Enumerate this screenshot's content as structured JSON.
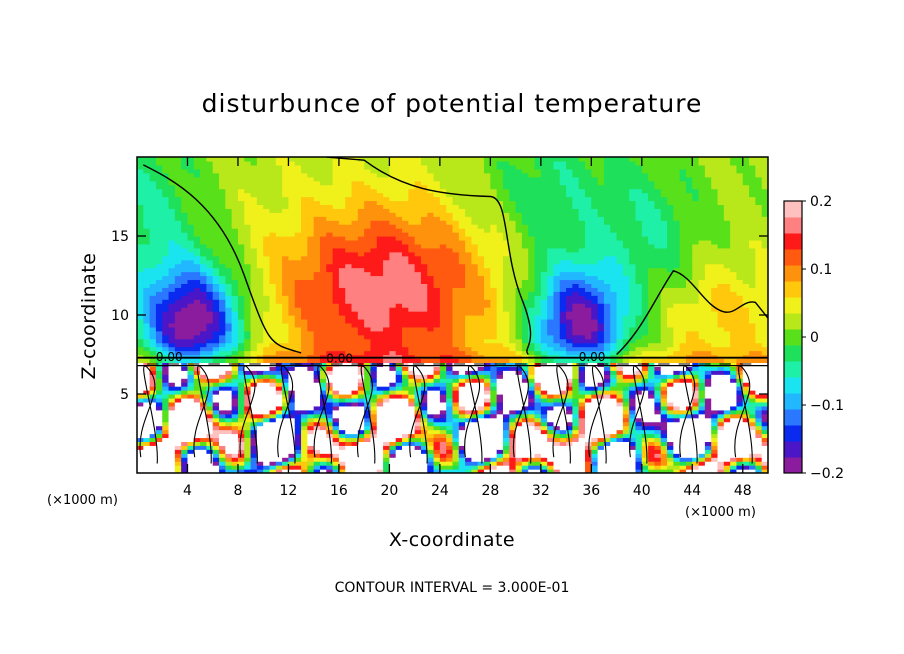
{
  "chart_data": {
    "type": "heatmap",
    "title": "disturbunce of potential temperature",
    "xlabel": "X-coordinate",
    "ylabel": "Z-coordinate",
    "x_unit_left": "(×1000 m)",
    "x_unit_right": "(×1000 m)",
    "footer": "CONTOUR INTERVAL = 3.000E-01",
    "xlim": [
      0,
      50
    ],
    "ylim": [
      0,
      20
    ],
    "x_ticks": [
      4,
      8,
      12,
      16,
      20,
      24,
      28,
      32,
      36,
      40,
      44,
      48
    ],
    "y_ticks": [
      5,
      10,
      15
    ],
    "colorbar": {
      "range": [
        -0.2,
        0.2
      ],
      "tick_values": [
        0.2,
        0.1,
        0,
        -0.1,
        -0.2
      ],
      "tick_labels": [
        "0.2",
        "0.1",
        "0",
        "−0.1",
        "−0.2"
      ],
      "colors": [
        "#8b1c9e",
        "#4a16c8",
        "#0a2af0",
        "#2a78ff",
        "#22b8ff",
        "#19e4f0",
        "#1ef0a8",
        "#1ee05a",
        "#58e01a",
        "#b8e81a",
        "#f0f01a",
        "#ffc80c",
        "#ff920c",
        "#ff5a10",
        "#ff1a1a",
        "#ff8080",
        "#ffc0c0"
      ]
    },
    "contour_labels": [
      "0.00",
      "0.00",
      "0.00"
    ],
    "features": {
      "negative_anomalies_x": [
        4.5,
        34.5
      ],
      "positive_maximum_x": 20,
      "interface_z": 7
    }
  }
}
